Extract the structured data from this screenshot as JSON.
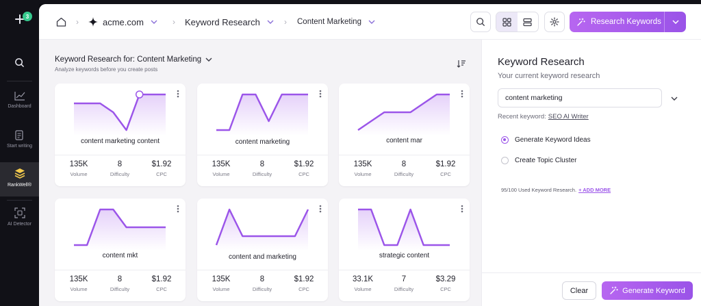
{
  "sidebar": {
    "badge_count": "3",
    "items": [
      {
        "label": "Dashboard",
        "icon": "chart-line-icon"
      },
      {
        "label": "Start writing",
        "icon": "document-edit-icon"
      },
      {
        "label": "RankWell®",
        "icon": "rankwell-stack-icon"
      },
      {
        "label": "AI Detector",
        "icon": "ai-detector-icon"
      }
    ]
  },
  "topbar": {
    "breadcrumbs": [
      "acme.com",
      "Keyword Research",
      "Content Marketing"
    ],
    "research_button_label": "Research Keywords"
  },
  "content": {
    "heading": "Keyword Research for: Content Marketing",
    "subheading": "Analyze keywords before you create posts",
    "metric_labels": {
      "volume": "Volume",
      "difficulty": "Difficulty",
      "cpc": "CPC"
    },
    "cards": [
      {
        "keyword": "content marketing content",
        "volume": "135K",
        "difficulty": "8",
        "cpc": "$1.92",
        "trend": [
          4,
          4,
          4,
          3,
          1,
          5,
          5,
          5
        ]
      },
      {
        "keyword": "content marketing",
        "volume": "135K",
        "difficulty": "8",
        "cpc": "$1.92",
        "trend": [
          1,
          1,
          5,
          5,
          2,
          5,
          5,
          5
        ]
      },
      {
        "keyword": "content mar",
        "volume": "135K",
        "difficulty": "8",
        "cpc": "$1.92",
        "trend": [
          1,
          2,
          3,
          3,
          3,
          4,
          5,
          5
        ]
      },
      {
        "keyword": "content mkt",
        "volume": "135K",
        "difficulty": "8",
        "cpc": "$1.92",
        "trend": [
          1,
          1,
          5,
          5,
          3,
          3,
          3,
          3
        ]
      },
      {
        "keyword": "content and marketing",
        "volume": "135K",
        "difficulty": "8",
        "cpc": "$1.92",
        "trend": [
          1,
          5,
          2,
          2,
          2,
          2,
          2,
          5
        ]
      },
      {
        "keyword": "strategic content",
        "volume": "33.1K",
        "difficulty": "7",
        "cpc": "$3.29",
        "trend": [
          5,
          5,
          1,
          1,
          5,
          1,
          1,
          1
        ]
      }
    ]
  },
  "panel": {
    "title": "Keyword Research",
    "subtitle": "Your current keyword research",
    "input_value": "content marketing",
    "recent_prefix": "Recent keyword:",
    "recent_link": "SEO AI Writer",
    "options": [
      "Generate Keyword Ideas",
      "Create Topic Cluster"
    ],
    "selected_option": 0,
    "usage_text": "95/100 Used Keyword Research.",
    "usage_link": "+ ADD MORE",
    "clear_label": "Clear",
    "generate_label": "Generate Keyword"
  },
  "colors": {
    "accent": "#9b55e9",
    "rail": "#111117",
    "success": "#36c98d"
  }
}
